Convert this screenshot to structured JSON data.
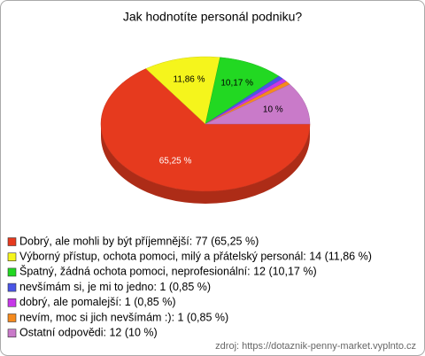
{
  "chart_data": {
    "type": "pie",
    "title": "Jak hodnotíte personál podniku?",
    "categories": [
      "Dobrý, ale mohli by být příjemnější",
      "Výborný přístup, ochota pomoci, milý a přátelský personál",
      "Špatný, žádná ochota pomoci, neprofesionální",
      "nevšímám si, je mi to jedno",
      "dobrý, ale pomalejší",
      "nevím, moc si jich nevšímám :)",
      "Ostatní odpovědi"
    ],
    "values": [
      65.25,
      11.86,
      10.17,
      0.85,
      0.85,
      0.85,
      10
    ],
    "value_labels": [
      "65,25 %",
      "11,86 %",
      "10,17 %",
      null,
      null,
      null,
      "10 %"
    ],
    "legend": [
      "Dobrý, ale mohli by být příjemnější: 77 (65,25 %)",
      "Výborný přístup, ochota pomoci, milý a přátelský personál: 14 (11,86 %)",
      "Špatný, žádná ochota pomoci, neprofesionální: 12 (10,17 %)",
      "nevšímám si, je mi to jedno: 1 (0,85 %)",
      "dobrý, ale pomalejší: 1 (0,85 %)",
      "nevím, moc si jich nevšímám :): 1 (0,85 %)",
      "Ostatní odpovědi: 12 (10 %)"
    ],
    "colors": [
      "#e63a1e",
      "#f5f51c",
      "#22d822",
      "#4a55e6",
      "#c638e8",
      "#f58a1e",
      "#c97ac9"
    ],
    "source": "zdroj: https://dotaznik-penny-market.vyplnto.cz"
  }
}
